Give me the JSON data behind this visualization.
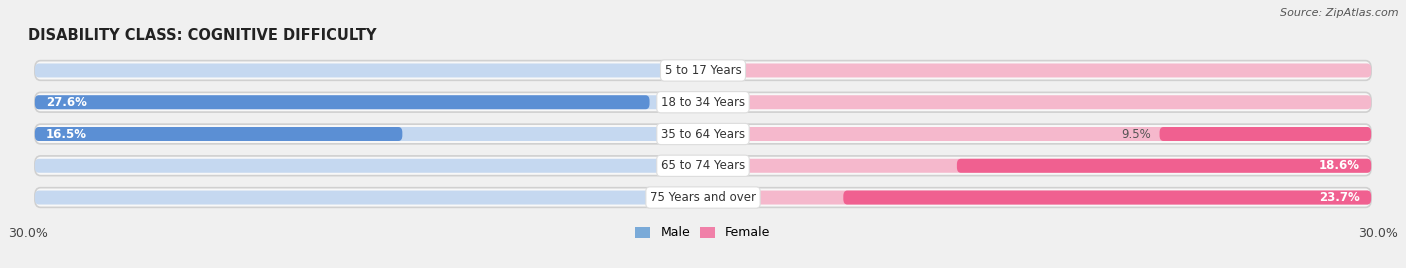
{
  "title": "DISABILITY CLASS: COGNITIVE DIFFICULTY",
  "source": "Source: ZipAtlas.com",
  "categories": [
    "5 to 17 Years",
    "18 to 34 Years",
    "35 to 64 Years",
    "65 to 74 Years",
    "75 Years and over"
  ],
  "male_values": [
    0.0,
    27.6,
    16.5,
    0.0,
    0.0
  ],
  "female_values": [
    0.0,
    0.0,
    9.5,
    18.6,
    23.7
  ],
  "male_bar_color": "#5b8fd4",
  "male_bg_color": "#c5d8f0",
  "female_bar_color": "#f06090",
  "female_bg_color": "#f5b8cc",
  "row_bg_color": "#e8e8e8",
  "row_inner_bg": "#f8f8f8",
  "fig_bg": "#f0f0f0",
  "x_max": 30.0,
  "legend_male_color": "#7aaad8",
  "legend_female_color": "#f080a8",
  "legend_male": "Male",
  "legend_female": "Female",
  "tick_label": "30.0%"
}
